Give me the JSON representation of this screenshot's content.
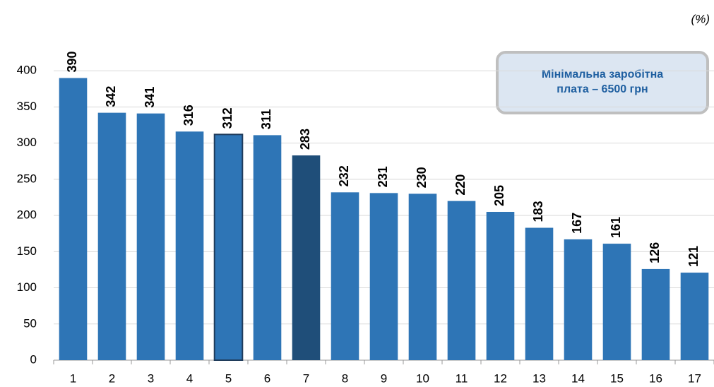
{
  "chart_data": {
    "type": "bar",
    "unit_label": "(%)",
    "annotation": [
      "Мінімальна заробітна",
      "плата – 6500 грн"
    ],
    "categories": [
      "1",
      "2",
      "3",
      "4",
      "5",
      "6",
      "7",
      "8",
      "9",
      "10",
      "11",
      "12",
      "13",
      "14",
      "15",
      "16",
      "17"
    ],
    "values": [
      390,
      342,
      341,
      316,
      312,
      311,
      283,
      232,
      231,
      230,
      220,
      205,
      183,
      167,
      161,
      126,
      121
    ],
    "colors": [
      "#2e75b6",
      "#2e75b6",
      "#2e75b6",
      "#2e75b6",
      "#2e75b6",
      "#2e75b6",
      "#1f4e79",
      "#2e75b6",
      "#2e75b6",
      "#2e75b6",
      "#2e75b6",
      "#2e75b6",
      "#2e75b6",
      "#2e75b6",
      "#2e75b6",
      "#2e75b6",
      "#2e75b6"
    ],
    "edgecolors": [
      null,
      null,
      null,
      null,
      "#1f3b5a",
      null,
      null,
      null,
      null,
      null,
      null,
      null,
      null,
      null,
      null,
      null,
      null
    ],
    "label_color": "#1f4e79",
    "ylim": [
      0,
      450
    ],
    "yticks": [
      0,
      50,
      100,
      150,
      200,
      250,
      300,
      350,
      400
    ],
    "grid": true
  }
}
